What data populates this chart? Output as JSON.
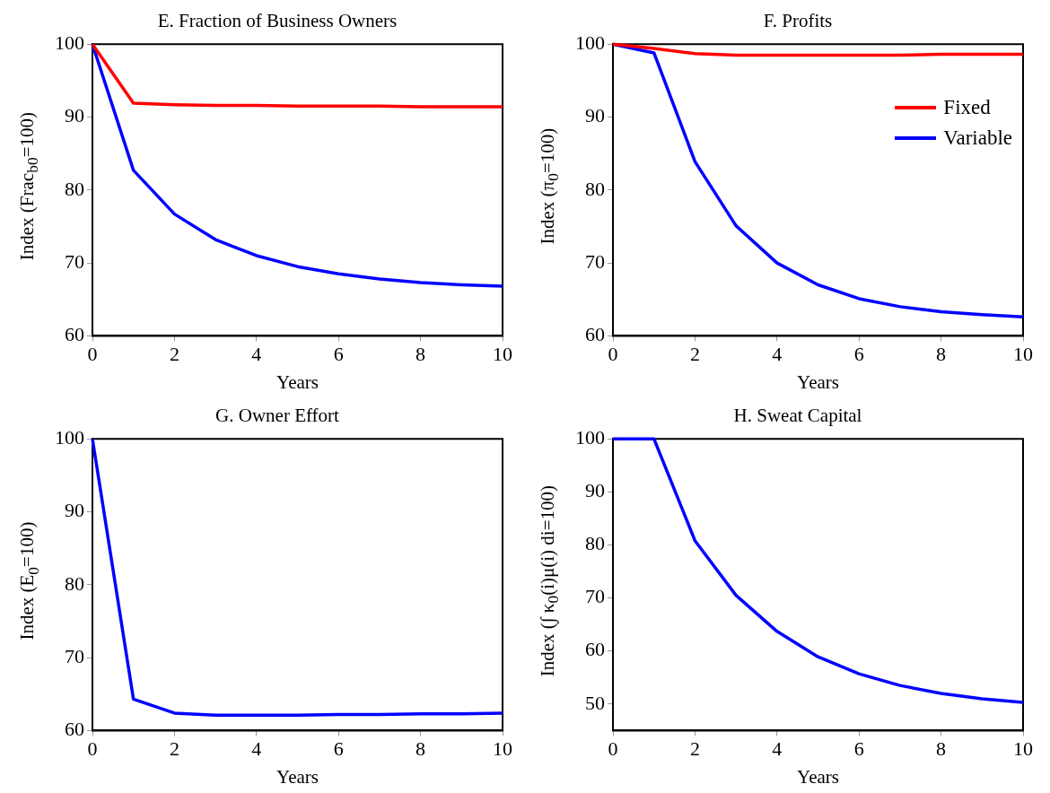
{
  "chart_data": [
    {
      "type": "line",
      "title": "E. Fraction of Business Owners",
      "xlabel": "Years",
      "ylabel": "Index (Frac$_{b0}$=100)",
      "x": [
        0,
        1,
        2,
        3,
        4,
        5,
        6,
        7,
        8,
        9,
        10
      ],
      "xlim": [
        0,
        10
      ],
      "xticks": [
        0,
        2,
        4,
        6,
        8,
        10
      ],
      "ylim": [
        60,
        100
      ],
      "yticks": [
        60,
        70,
        80,
        90,
        100
      ],
      "grid": false,
      "legend": false,
      "series": [
        {
          "color": "#ff0000",
          "values": [
            100,
            91.9,
            91.7,
            91.6,
            91.6,
            91.5,
            91.5,
            91.5,
            91.4,
            91.4,
            91.4
          ]
        },
        {
          "color": "#0000ff",
          "values": [
            100,
            82.7,
            76.7,
            73.2,
            71.0,
            69.5,
            68.5,
            67.8,
            67.3,
            67.0,
            66.8
          ]
        }
      ]
    },
    {
      "type": "line",
      "title": "F. Profits",
      "xlabel": "Years",
      "ylabel": "Index (π$_{0}$=100)",
      "x": [
        0,
        1,
        2,
        3,
        4,
        5,
        6,
        7,
        8,
        9,
        10
      ],
      "xlim": [
        0,
        10
      ],
      "xticks": [
        0,
        2,
        4,
        6,
        8,
        10
      ],
      "ylim": [
        60,
        100
      ],
      "yticks": [
        60,
        70,
        80,
        90,
        100
      ],
      "grid": false,
      "legend": "top right",
      "series": [
        {
          "name": "Fixed",
          "color": "#ff0000",
          "values": [
            100,
            99.4,
            98.7,
            98.5,
            98.5,
            98.5,
            98.5,
            98.5,
            98.6,
            98.6,
            98.6
          ]
        },
        {
          "name": "Variable",
          "color": "#0000ff",
          "values": [
            100,
            98.8,
            83.9,
            75.1,
            70.0,
            67.0,
            65.1,
            64.0,
            63.3,
            62.9,
            62.6
          ]
        }
      ]
    },
    {
      "type": "line",
      "title": "G. Owner Effort",
      "xlabel": "Years",
      "ylabel": "Index (E$_{0}$=100)",
      "x": [
        0,
        1,
        2,
        3,
        4,
        5,
        6,
        7,
        8,
        9,
        10
      ],
      "xlim": [
        0,
        10
      ],
      "xticks": [
        0,
        2,
        4,
        6,
        8,
        10
      ],
      "ylim": [
        60,
        100
      ],
      "yticks": [
        60,
        70,
        80,
        90,
        100
      ],
      "grid": false,
      "legend": false,
      "series": [
        {
          "color": "#0000ff",
          "values": [
            100,
            64.3,
            62.4,
            62.1,
            62.1,
            62.1,
            62.2,
            62.2,
            62.3,
            62.3,
            62.4
          ]
        }
      ]
    },
    {
      "type": "line",
      "title": "H. Sweat Capital",
      "xlabel": "Years",
      "ylabel": "Index (∫ κ$_{0}$(i)μ(i) di=100)",
      "x": [
        0,
        1,
        2,
        3,
        4,
        5,
        6,
        7,
        8,
        9,
        10
      ],
      "xlim": [
        0,
        10
      ],
      "xticks": [
        0,
        2,
        4,
        6,
        8,
        10
      ],
      "ylim": [
        45,
        100
      ],
      "yticks": [
        50,
        60,
        70,
        80,
        90,
        100
      ],
      "grid": false,
      "legend": false,
      "series": [
        {
          "color": "#0000ff",
          "values": [
            100,
            100,
            80.8,
            70.5,
            63.7,
            58.9,
            55.7,
            53.5,
            52.0,
            51.0,
            50.3
          ]
        }
      ]
    }
  ]
}
